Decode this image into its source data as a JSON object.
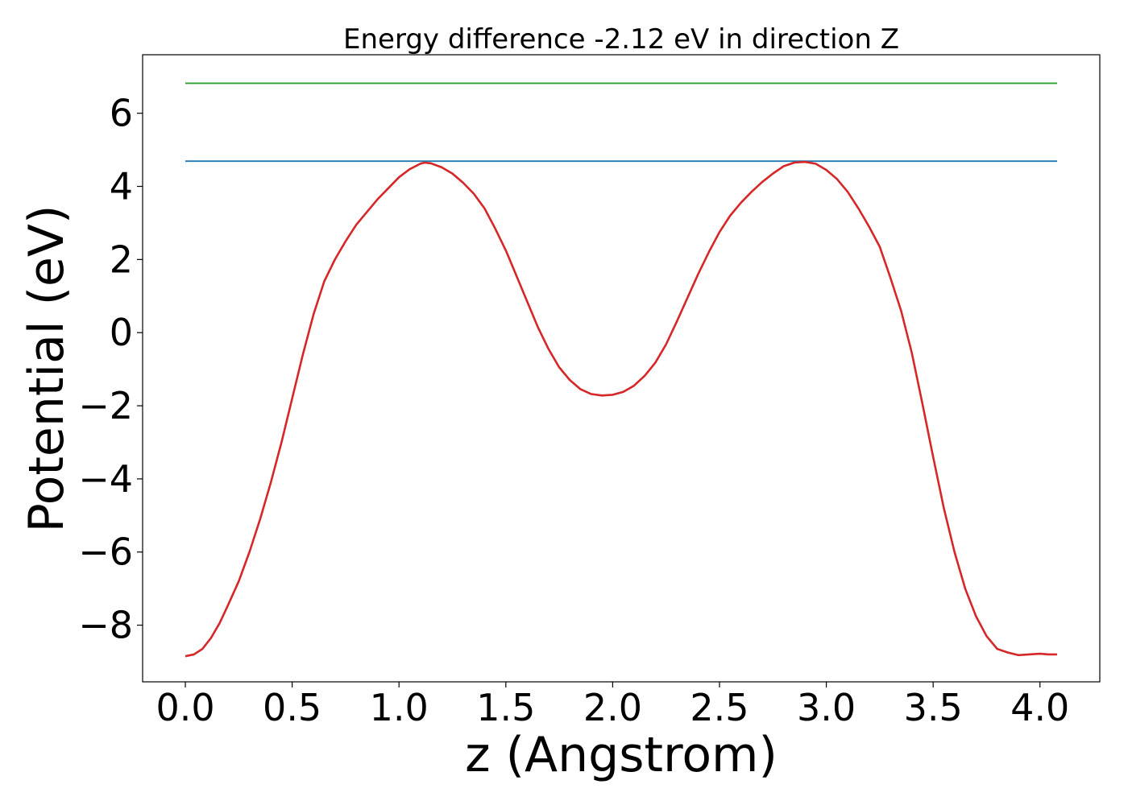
{
  "chart_data": {
    "type": "line",
    "title": "Energy difference -2.12 eV in direction Z",
    "xlabel": "z (Angstrom)",
    "ylabel": "Potential (eV)",
    "xlim": [
      -0.2,
      4.28
    ],
    "ylim": [
      -9.55,
      7.6
    ],
    "xticks": [
      0.0,
      0.5,
      1.0,
      1.5,
      2.0,
      2.5,
      3.0,
      3.5,
      4.0
    ],
    "xtick_labels": [
      "0.0",
      "0.5",
      "1.0",
      "1.5",
      "2.0",
      "2.5",
      "3.0",
      "3.5",
      "4.0"
    ],
    "yticks": [
      -8,
      -6,
      -4,
      -2,
      0,
      2,
      4,
      6
    ],
    "ytick_labels": [
      "−8",
      "−6",
      "−4",
      "−2",
      "0",
      "2",
      "4",
      "6"
    ],
    "grid": false,
    "legend": "none",
    "series": [
      {
        "kind": "hline",
        "color": "#2ca02c",
        "x": [
          0.0,
          4.08
        ],
        "y": [
          6.82,
          6.82
        ]
      },
      {
        "kind": "hline",
        "color": "#1f77b4",
        "x": [
          0.0,
          4.08
        ],
        "y": [
          4.69,
          4.69
        ]
      },
      {
        "kind": "line",
        "color": "#d62728",
        "x": [
          0.0,
          0.04,
          0.08,
          0.12,
          0.16,
          0.2,
          0.25,
          0.3,
          0.35,
          0.4,
          0.45,
          0.5,
          0.55,
          0.6,
          0.65,
          0.7,
          0.75,
          0.8,
          0.85,
          0.9,
          0.95,
          1.0,
          1.05,
          1.1,
          1.12,
          1.15,
          1.2,
          1.25,
          1.3,
          1.35,
          1.4,
          1.45,
          1.5,
          1.55,
          1.6,
          1.65,
          1.7,
          1.75,
          1.8,
          1.85,
          1.9,
          1.95,
          2.0,
          2.05,
          2.1,
          2.15,
          2.2,
          2.25,
          2.3,
          2.35,
          2.4,
          2.45,
          2.5,
          2.55,
          2.6,
          2.65,
          2.7,
          2.75,
          2.8,
          2.85,
          2.9,
          2.95,
          3.0,
          3.05,
          3.1,
          3.15,
          3.2,
          3.25,
          3.3,
          3.35,
          3.4,
          3.45,
          3.5,
          3.55,
          3.6,
          3.65,
          3.7,
          3.75,
          3.8,
          3.85,
          3.9,
          3.95,
          4.0,
          4.04,
          4.08
        ],
        "y": [
          -8.85,
          -8.8,
          -8.65,
          -8.35,
          -7.95,
          -7.45,
          -6.8,
          -6.0,
          -5.1,
          -4.1,
          -3.0,
          -1.8,
          -0.6,
          0.5,
          1.4,
          2.0,
          2.5,
          2.95,
          3.3,
          3.65,
          3.95,
          4.25,
          4.47,
          4.62,
          4.65,
          4.63,
          4.52,
          4.35,
          4.1,
          3.8,
          3.4,
          2.85,
          2.25,
          1.55,
          0.85,
          0.15,
          -0.45,
          -0.95,
          -1.3,
          -1.55,
          -1.68,
          -1.72,
          -1.7,
          -1.62,
          -1.45,
          -1.18,
          -0.82,
          -0.32,
          0.3,
          0.95,
          1.6,
          2.2,
          2.75,
          3.2,
          3.55,
          3.85,
          4.12,
          4.35,
          4.55,
          4.65,
          4.67,
          4.62,
          4.45,
          4.2,
          3.85,
          3.4,
          2.9,
          2.35,
          1.5,
          0.6,
          -0.55,
          -1.95,
          -3.4,
          -4.8,
          -6.0,
          -7.0,
          -7.75,
          -8.3,
          -8.65,
          -8.75,
          -8.82,
          -8.8,
          -8.78,
          -8.8,
          -8.8
        ]
      }
    ]
  }
}
